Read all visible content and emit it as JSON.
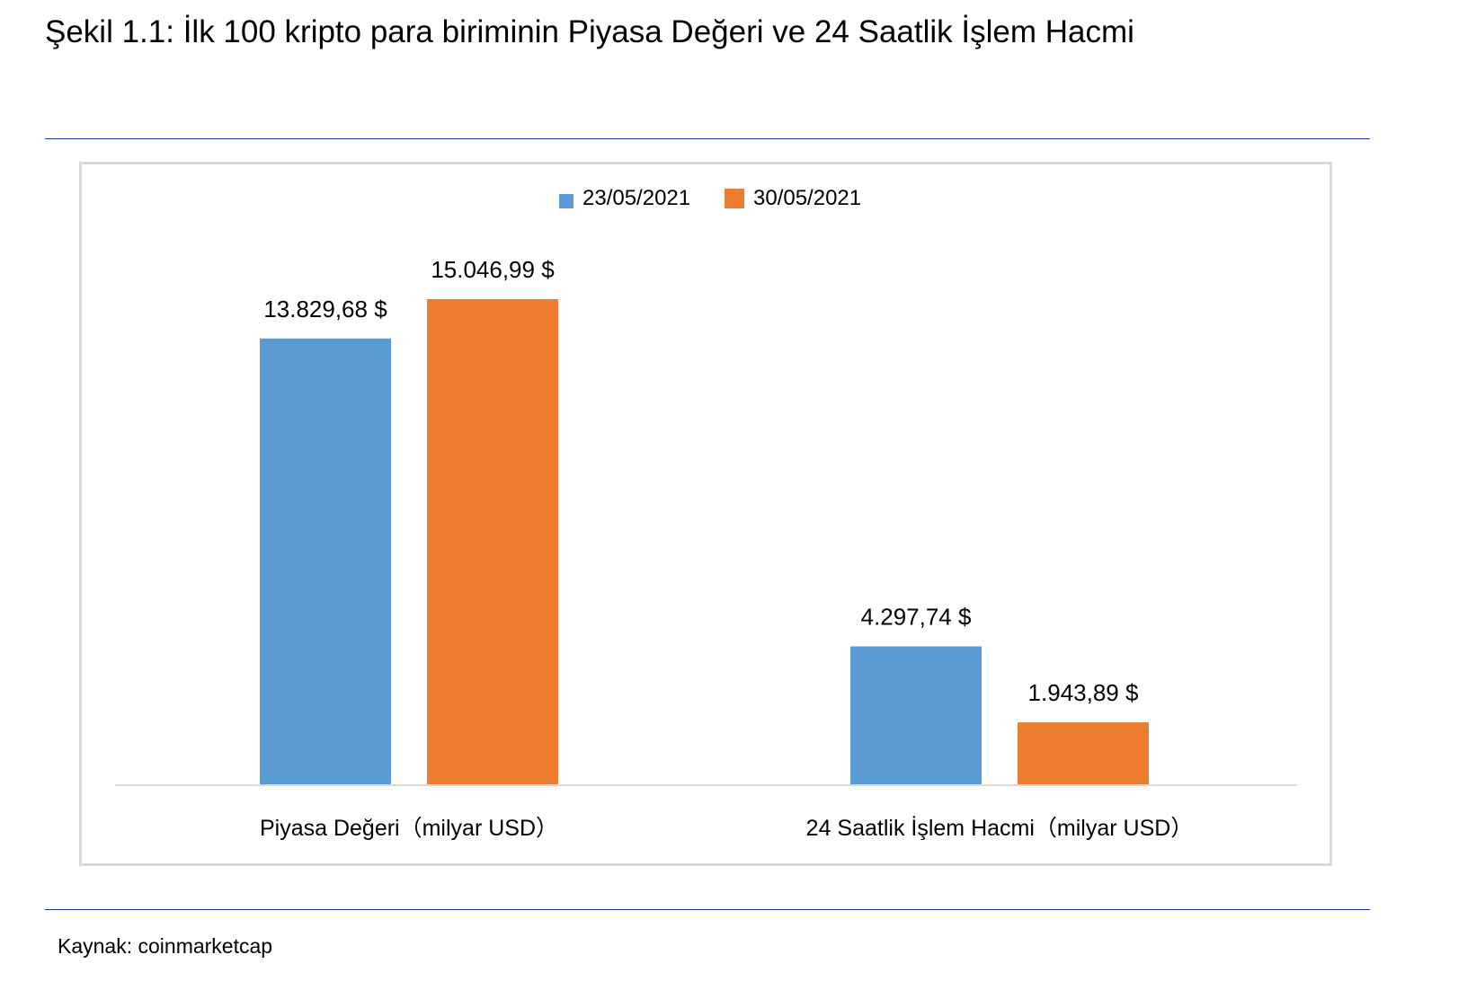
{
  "figure": {
    "title": "Şekil 1.1: İlk 100 kripto para biriminin Piyasa Değeri ve 24 Saatlik İşlem Hacmi",
    "source": "Kaynak: coinmarketcap"
  },
  "chart_data": {
    "type": "bar",
    "title": "",
    "xlabel": "",
    "ylabel": "",
    "categories": [
      "Piyasa Değeri（milyar USD）",
      "24 Saatlik İşlem Hacmi（milyar USD）"
    ],
    "series": [
      {
        "name": "23/05/2021",
        "color": "#5b9bd5",
        "values": [
          13829.68,
          4297.74
        ],
        "labels": [
          "13.829,68 $",
          "4.297,74 $"
        ]
      },
      {
        "name": "30/05/2021",
        "color": "#ed7d31",
        "values": [
          15046.99,
          1943.89
        ],
        "labels": [
          "15.046,99 $",
          "1.943,89 $"
        ]
      }
    ],
    "ylim": [
      0,
      15046.99
    ],
    "grid": false,
    "legend": "top-center"
  }
}
